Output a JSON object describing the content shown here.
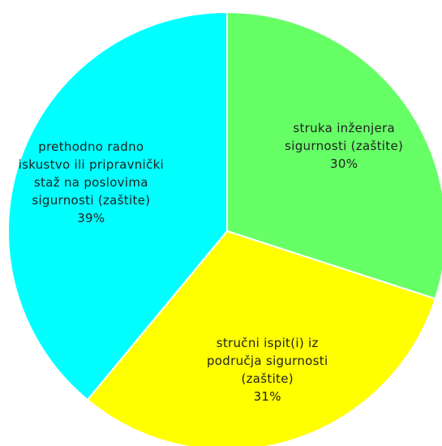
{
  "chart_data": {
    "type": "pie",
    "categories": [
      "struka inženjera sigurnosti (zaštite)",
      "stručni ispit(i) iz područja sigurnosti (zaštite)",
      "prethodno radno iskustvo ili pripravnički staž na poslovima sigurnosti (zaštite)"
    ],
    "values": [
      30,
      31,
      39
    ],
    "value_labels": [
      "30%",
      "31%",
      "39%"
    ],
    "colors": [
      "#66ff66",
      "#ffff00",
      "#00ffff"
    ]
  }
}
